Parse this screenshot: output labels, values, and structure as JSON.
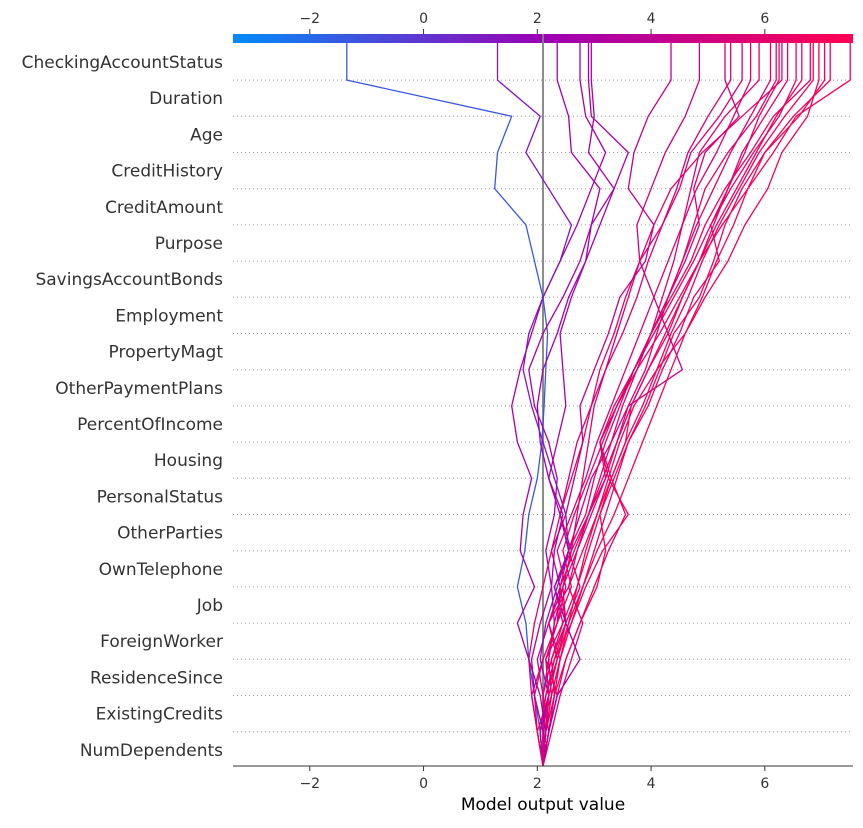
{
  "chart_data": {
    "type": "line",
    "subtype": "shap-decision-plot",
    "xlabel": "Model output value",
    "xlim": [
      -3.35,
      7.55
    ],
    "x_ticks": [
      -2,
      0,
      2,
      4,
      6
    ],
    "x_tick_labels": [
      "−2",
      "0",
      "2",
      "4",
      "6"
    ],
    "base_value": 2.1,
    "features": [
      "CheckingAccountStatus",
      "Duration",
      "Age",
      "CreditHistory",
      "CreditAmount",
      "Purpose",
      "SavingsAccountBonds",
      "Employment",
      "PropertyMagt",
      "OtherPaymentPlans",
      "PercentOfIncome",
      "Housing",
      "PersonalStatus",
      "OtherParties",
      "OwnTelephone",
      "Job",
      "ForeignWorker",
      "ResidenceSince",
      "ExistingCredits",
      "NumDependents"
    ],
    "colorbar": {
      "low_color": "#008bfb",
      "mid_color": "#9b00b4",
      "high_color": "#ff0052"
    },
    "grid": "dotted horizontal",
    "series_note_order": "values listed from bottom (NumDependents) to top (CheckingAccountStatus, then final output)",
    "series": [
      {
        "values": [
          2.1,
          2.05,
          1.95,
          1.85,
          1.8,
          1.65,
          1.78,
          1.85,
          2.0,
          2.08,
          2.12,
          2.15,
          2.18,
          2.1,
          1.95,
          1.8,
          1.25,
          1.3,
          1.55,
          -1.35
        ]
      },
      {
        "values": [
          2.1,
          2.12,
          2.1,
          2.2,
          2.3,
          2.25,
          2.15,
          2.3,
          2.35,
          2.2,
          1.95,
          1.85,
          2.1,
          2.45,
          2.75,
          2.95,
          3.35,
          3.6,
          2.95,
          2.9
        ]
      },
      {
        "values": [
          2.1,
          2.15,
          2.2,
          2.35,
          2.5,
          2.45,
          2.6,
          2.7,
          2.8,
          2.9,
          3.0,
          3.2,
          3.4,
          3.6,
          3.8,
          4.2,
          4.5,
          4.7,
          5.2,
          5.6
        ]
      },
      {
        "values": [
          2.1,
          2.0,
          1.9,
          1.85,
          1.95,
          2.1,
          2.25,
          2.4,
          2.6,
          2.8,
          2.95,
          3.1,
          3.35,
          3.55,
          3.8,
          4.05,
          4.35,
          4.9,
          5.6,
          6.3
        ]
      },
      {
        "values": [
          2.1,
          2.2,
          2.35,
          2.5,
          2.75,
          3.05,
          3.2,
          3.1,
          3.35,
          3.6,
          3.9,
          4.15,
          4.4,
          4.85,
          5.1,
          5.3,
          5.6,
          6.0,
          6.6,
          7.05
        ]
      },
      {
        "values": [
          2.1,
          2.05,
          2.15,
          2.3,
          2.6,
          2.85,
          3.15,
          3.6,
          3.25,
          3.45,
          3.7,
          4.1,
          4.6,
          4.95,
          5.35,
          5.65,
          6.05,
          6.3,
          6.75,
          6.95
        ]
      },
      {
        "values": [
          2.1,
          2.2,
          2.3,
          2.25,
          2.5,
          2.75,
          2.55,
          2.85,
          3.0,
          3.2,
          3.45,
          3.7,
          4.0,
          4.3,
          4.55,
          4.75,
          4.95,
          5.35,
          5.85,
          6.2
        ]
      },
      {
        "values": [
          2.1,
          2.0,
          1.9,
          2.1,
          2.35,
          2.4,
          2.25,
          2.5,
          2.65,
          2.8,
          2.75,
          3.0,
          3.25,
          3.45,
          3.9,
          4.05,
          3.6,
          3.7,
          3.95,
          4.35
        ]
      },
      {
        "values": [
          2.1,
          2.15,
          2.25,
          2.4,
          2.55,
          2.7,
          2.9,
          3.1,
          3.3,
          3.55,
          3.65,
          3.95,
          4.25,
          4.55,
          4.85,
          5.25,
          5.7,
          6.15,
          6.55,
          7.5
        ]
      },
      {
        "values": [
          2.1,
          2.2,
          2.1,
          2.0,
          2.2,
          2.45,
          2.6,
          2.4,
          2.55,
          2.7,
          2.95,
          3.2,
          3.5,
          3.75,
          3.95,
          4.2,
          4.45,
          4.65,
          5.0,
          5.4
        ]
      },
      {
        "values": [
          2.1,
          2.05,
          2.25,
          2.4,
          2.2,
          2.55,
          2.8,
          3.05,
          3.25,
          3.1,
          3.4,
          3.7,
          4.0,
          4.35,
          4.7,
          4.95,
          5.3,
          5.75,
          6.15,
          6.8
        ]
      },
      {
        "values": [
          2.1,
          2.2,
          2.35,
          2.15,
          2.45,
          2.3,
          2.6,
          2.9,
          3.2,
          3.4,
          3.6,
          3.9,
          4.1,
          4.3,
          4.55,
          4.8,
          5.1,
          5.4,
          5.75,
          6.1
        ]
      },
      {
        "values": [
          2.1,
          2.05,
          2.15,
          2.35,
          2.2,
          2.4,
          2.55,
          2.75,
          2.95,
          3.3,
          3.6,
          4.55,
          4.3,
          4.05,
          3.8,
          3.75,
          4.0,
          4.25,
          4.6,
          4.85
        ]
      },
      {
        "values": [
          2.1,
          2.0,
          1.95,
          2.1,
          2.35,
          2.6,
          2.45,
          2.65,
          2.9,
          3.15,
          3.4,
          3.75,
          4.15,
          4.5,
          4.85,
          5.15,
          5.5,
          5.85,
          6.2,
          6.65
        ]
      },
      {
        "values": [
          2.1,
          2.15,
          2.3,
          2.5,
          2.75,
          3.0,
          3.25,
          3.55,
          3.3,
          3.1,
          3.35,
          3.7,
          4.05,
          4.4,
          4.75,
          5.05,
          5.4,
          5.8,
          6.25,
          6.55
        ]
      },
      {
        "values": [
          2.1,
          2.2,
          2.3,
          2.4,
          2.6,
          2.8,
          3.0,
          3.2,
          3.4,
          3.6,
          3.95,
          4.2,
          4.5,
          4.75,
          5.2,
          5.05,
          5.35,
          5.6,
          6.0,
          6.4
        ]
      },
      {
        "values": [
          2.1,
          2.05,
          2.15,
          2.3,
          2.5,
          2.4,
          2.65,
          2.9,
          3.15,
          3.4,
          3.65,
          3.95,
          4.3,
          4.55,
          4.85,
          5.1,
          5.35,
          5.65,
          5.9,
          6.25
        ]
      },
      {
        "values": [
          2.1,
          2.15,
          2.1,
          2.25,
          2.45,
          2.7,
          2.85,
          3.05,
          3.3,
          3.55,
          3.85,
          4.1,
          4.35,
          4.65,
          4.9,
          5.2,
          5.55,
          5.9,
          6.35,
          6.85
        ]
      },
      {
        "values": [
          2.1,
          2.0,
          2.2,
          2.35,
          2.55,
          2.8,
          3.05,
          3.35,
          3.6,
          3.85,
          4.1,
          4.35,
          4.6,
          4.9,
          5.15,
          5.45,
          5.7,
          6.0,
          6.5,
          7.15
        ]
      },
      {
        "values": [
          2.1,
          2.25,
          2.4,
          2.6,
          2.8,
          2.55,
          2.7,
          2.9,
          3.1,
          3.3,
          3.5,
          3.75,
          4.0,
          4.2,
          4.4,
          4.55,
          4.7,
          4.85,
          5.3,
          5.9
        ]
      },
      {
        "values": [
          2.1,
          2.1,
          1.95,
          1.9,
          2.05,
          2.25,
          2.3,
          2.45,
          2.2,
          2.35,
          2.5,
          2.45,
          2.4,
          2.6,
          2.85,
          3.1,
          3.35,
          2.9,
          3.0,
          2.95
        ]
      },
      {
        "values": [
          2.1,
          2.15,
          2.05,
          1.85,
          1.65,
          1.95,
          1.7,
          1.75,
          1.9,
          1.65,
          1.55,
          1.7,
          1.9,
          2.1,
          2.4,
          2.7,
          2.95,
          3.2,
          2.85,
          2.75
        ]
      },
      {
        "values": [
          2.1,
          2.2,
          2.35,
          2.75,
          2.5,
          2.3,
          2.55,
          2.4,
          2.2,
          2.05,
          2.0,
          2.1,
          2.35,
          2.55,
          2.85,
          2.95,
          3.1,
          2.6,
          2.55,
          2.35
        ]
      },
      {
        "values": [
          2.1,
          2.05,
          2.2,
          2.05,
          2.15,
          2.35,
          2.55,
          2.5,
          2.3,
          2.1,
          1.9,
          1.75,
          1.85,
          2.1,
          2.4,
          2.6,
          2.2,
          1.8,
          2.05,
          1.3
        ]
      },
      {
        "values": [
          2.1,
          2.15,
          2.25,
          2.2,
          2.3,
          2.45,
          2.7,
          2.95,
          3.2,
          3.1,
          3.4,
          3.7,
          4.0,
          4.3,
          4.6,
          4.85,
          4.75,
          4.95,
          5.55,
          5.3
        ]
      },
      {
        "values": [
          2.1,
          2.1,
          2.2,
          2.15,
          2.35,
          2.5,
          2.35,
          2.6,
          2.85,
          3.05,
          3.3,
          3.55,
          3.8,
          4.05,
          4.3,
          4.55,
          4.8,
          5.15,
          5.45,
          5.75
        ]
      }
    ]
  }
}
